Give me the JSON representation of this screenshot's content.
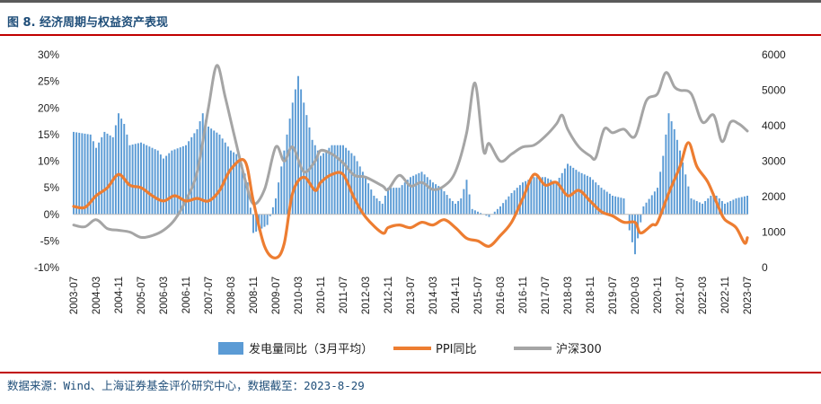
{
  "title": "图 8. 经济周期与权益资产表现",
  "source": "数据来源：Wind、上海证券基金评价研究中心，数据截至：2023-8-29",
  "colors": {
    "bar": "#5b9bd5",
    "ppi": "#ed7d31",
    "hs300": "#a5a5a5",
    "accent": "#c00000",
    "title": "#1f4e79"
  },
  "chart_data": {
    "type": "bar+line",
    "x_start": "2003-07",
    "x_end": "2023-07",
    "x_tick_labels": [
      "2003-07",
      "2004-03",
      "2004-11",
      "2005-07",
      "2006-03",
      "2006-11",
      "2007-07",
      "2008-03",
      "2008-11",
      "2009-07",
      "2010-03",
      "2010-11",
      "2011-07",
      "2012-03",
      "2012-11",
      "2013-07",
      "2014-03",
      "2014-11",
      "2015-07",
      "2016-03",
      "2016-11",
      "2017-07",
      "2018-03",
      "2018-11",
      "2019-07",
      "2020-03",
      "2020-11",
      "2021-07",
      "2022-03",
      "2022-11",
      "2023-07"
    ],
    "y_left": {
      "ticks": [
        "30%",
        "25%",
        "20%",
        "15%",
        "10%",
        "5%",
        "0%",
        "-5%",
        "-10%"
      ],
      "range": [
        -10,
        30
      ],
      "unit": "%"
    },
    "y_right": {
      "ticks": [
        "6000",
        "5000",
        "4000",
        "3000",
        "2000",
        "1000",
        "0"
      ],
      "range": [
        0,
        6000
      ]
    },
    "legend": [
      "发电量同比（3月平均）",
      "PPI同比",
      "沪深300"
    ],
    "legend_position": "bottom",
    "series": [
      {
        "name": "发电量同比（3月平均）",
        "type": "bar",
        "axis": "left",
        "points": [
          [
            "2003-07",
            15.5
          ],
          [
            "2004-01",
            15
          ],
          [
            "2004-03",
            12.5
          ],
          [
            "2004-06",
            15.5
          ],
          [
            "2004-09",
            14.5
          ],
          [
            "2004-11",
            19
          ],
          [
            "2005-01",
            17
          ],
          [
            "2005-03",
            13
          ],
          [
            "2005-07",
            13.5
          ],
          [
            "2006-01",
            12
          ],
          [
            "2006-03",
            10.5
          ],
          [
            "2006-06",
            12
          ],
          [
            "2006-11",
            13
          ],
          [
            "2007-03",
            16
          ],
          [
            "2007-05",
            19
          ],
          [
            "2007-07",
            16.5
          ],
          [
            "2007-11",
            15
          ],
          [
            "2008-03",
            12
          ],
          [
            "2008-06",
            11
          ],
          [
            "2008-09",
            6
          ],
          [
            "2008-11",
            -3.5
          ],
          [
            "2009-01",
            -3
          ],
          [
            "2009-04",
            -2
          ],
          [
            "2009-07",
            3
          ],
          [
            "2009-10",
            12
          ],
          [
            "2010-01",
            21
          ],
          [
            "2010-03",
            26
          ],
          [
            "2010-05",
            21
          ],
          [
            "2010-08",
            14
          ],
          [
            "2010-11",
            11
          ],
          [
            "2011-03",
            13
          ],
          [
            "2011-07",
            13
          ],
          [
            "2011-11",
            11
          ],
          [
            "2012-03",
            7
          ],
          [
            "2012-06",
            3.5
          ],
          [
            "2012-09",
            2
          ],
          [
            "2012-11",
            5
          ],
          [
            "2013-03",
            5
          ],
          [
            "2013-07",
            7
          ],
          [
            "2013-11",
            8
          ],
          [
            "2014-03",
            6
          ],
          [
            "2014-06",
            5
          ],
          [
            "2014-09",
            3
          ],
          [
            "2014-11",
            2
          ],
          [
            "2015-01",
            3
          ],
          [
            "2015-03",
            6.5
          ],
          [
            "2015-05",
            1
          ],
          [
            "2015-07",
            0.5
          ],
          [
            "2015-11",
            -0.5
          ],
          [
            "2016-03",
            1.5
          ],
          [
            "2016-07",
            4
          ],
          [
            "2016-11",
            6
          ],
          [
            "2017-03",
            7
          ],
          [
            "2017-07",
            7
          ],
          [
            "2017-11",
            6
          ],
          [
            "2018-03",
            9.5
          ],
          [
            "2018-07",
            8
          ],
          [
            "2018-11",
            7
          ],
          [
            "2019-03",
            5
          ],
          [
            "2019-07",
            3.5
          ],
          [
            "2019-11",
            3
          ],
          [
            "2020-01",
            -3
          ],
          [
            "2020-03",
            -7.5
          ],
          [
            "2020-06",
            1.5
          ],
          [
            "2020-11",
            5
          ],
          [
            "2021-01",
            11
          ],
          [
            "2021-03",
            19
          ],
          [
            "2021-05",
            16
          ],
          [
            "2021-07",
            12
          ],
          [
            "2021-11",
            3
          ],
          [
            "2022-03",
            2
          ],
          [
            "2022-07",
            4
          ],
          [
            "2022-11",
            2
          ],
          [
            "2023-03",
            3
          ],
          [
            "2023-07",
            3.5
          ]
        ]
      },
      {
        "name": "PPI同比",
        "type": "line",
        "axis": "left",
        "points": [
          [
            "2003-07",
            1.5
          ],
          [
            "2003-11",
            1.3
          ],
          [
            "2004-03",
            3.5
          ],
          [
            "2004-07",
            5
          ],
          [
            "2004-11",
            7.5
          ],
          [
            "2005-03",
            5.5
          ],
          [
            "2005-07",
            5
          ],
          [
            "2005-11",
            3.5
          ],
          [
            "2006-03",
            2.5
          ],
          [
            "2006-07",
            3.5
          ],
          [
            "2006-11",
            2.5
          ],
          [
            "2007-03",
            3
          ],
          [
            "2007-07",
            2.5
          ],
          [
            "2007-11",
            4.5
          ],
          [
            "2008-03",
            8.5
          ],
          [
            "2008-08",
            10
          ],
          [
            "2008-11",
            2.5
          ],
          [
            "2009-03",
            -6
          ],
          [
            "2009-07",
            -8.2
          ],
          [
            "2009-10",
            -5.5
          ],
          [
            "2010-01",
            4
          ],
          [
            "2010-05",
            7
          ],
          [
            "2010-09",
            4.5
          ],
          [
            "2010-11",
            6
          ],
          [
            "2011-03",
            7.5
          ],
          [
            "2011-07",
            7.5
          ],
          [
            "2011-11",
            3
          ],
          [
            "2012-03",
            -0.5
          ],
          [
            "2012-09",
            -3.5
          ],
          [
            "2012-11",
            -2.5
          ],
          [
            "2013-03",
            -2
          ],
          [
            "2013-07",
            -2.5
          ],
          [
            "2013-11",
            -1.5
          ],
          [
            "2014-03",
            -2
          ],
          [
            "2014-07",
            -1
          ],
          [
            "2014-11",
            -2.5
          ],
          [
            "2015-03",
            -4.5
          ],
          [
            "2015-07",
            -5
          ],
          [
            "2015-11",
            -6
          ],
          [
            "2016-03",
            -4
          ],
          [
            "2016-07",
            -1.5
          ],
          [
            "2016-11",
            3
          ],
          [
            "2017-03",
            7.5
          ],
          [
            "2017-07",
            5.5
          ],
          [
            "2017-11",
            6
          ],
          [
            "2018-03",
            3.5
          ],
          [
            "2018-07",
            4.5
          ],
          [
            "2018-11",
            2.5
          ],
          [
            "2019-03",
            0.5
          ],
          [
            "2019-07",
            -0.3
          ],
          [
            "2019-11",
            -1.5
          ],
          [
            "2020-03",
            -1.5
          ],
          [
            "2020-05",
            -3.5
          ],
          [
            "2020-09",
            -2
          ],
          [
            "2020-11",
            -1.5
          ],
          [
            "2021-03",
            4
          ],
          [
            "2021-07",
            9
          ],
          [
            "2021-10",
            13.5
          ],
          [
            "2022-01",
            9
          ],
          [
            "2022-05",
            6
          ],
          [
            "2022-09",
            1
          ],
          [
            "2022-11",
            -1
          ],
          [
            "2023-03",
            -2.5
          ],
          [
            "2023-06",
            -5.4
          ],
          [
            "2023-07",
            -4.4
          ]
        ]
      },
      {
        "name": "沪深300",
        "type": "line",
        "axis": "right",
        "points": [
          [
            "2003-07",
            1200
          ],
          [
            "2003-11",
            1150
          ],
          [
            "2004-03",
            1350
          ],
          [
            "2004-07",
            1100
          ],
          [
            "2004-11",
            1050
          ],
          [
            "2005-03",
            1000
          ],
          [
            "2005-07",
            850
          ],
          [
            "2005-11",
            900
          ],
          [
            "2006-03",
            1050
          ],
          [
            "2006-07",
            1350
          ],
          [
            "2006-11",
            1900
          ],
          [
            "2007-03",
            2700
          ],
          [
            "2007-07",
            4500
          ],
          [
            "2007-10",
            5700
          ],
          [
            "2008-01",
            4800
          ],
          [
            "2008-04",
            3800
          ],
          [
            "2008-08",
            2500
          ],
          [
            "2008-11",
            1800
          ],
          [
            "2009-03",
            2200
          ],
          [
            "2009-07",
            3400
          ],
          [
            "2009-10",
            3000
          ],
          [
            "2010-01",
            3400
          ],
          [
            "2010-05",
            2700
          ],
          [
            "2010-09",
            3000
          ],
          [
            "2010-11",
            3300
          ],
          [
            "2011-03",
            3200
          ],
          [
            "2011-07",
            2950
          ],
          [
            "2011-11",
            2600
          ],
          [
            "2012-03",
            2550
          ],
          [
            "2012-09",
            2300
          ],
          [
            "2012-11",
            2200
          ],
          [
            "2013-03",
            2600
          ],
          [
            "2013-07",
            2300
          ],
          [
            "2013-11",
            2400
          ],
          [
            "2014-03",
            2200
          ],
          [
            "2014-07",
            2300
          ],
          [
            "2014-11",
            2700
          ],
          [
            "2015-03",
            3800
          ],
          [
            "2015-06",
            5200
          ],
          [
            "2015-09",
            3300
          ],
          [
            "2015-11",
            3500
          ],
          [
            "2016-03",
            3000
          ],
          [
            "2016-07",
            3200
          ],
          [
            "2016-11",
            3400
          ],
          [
            "2017-03",
            3450
          ],
          [
            "2017-07",
            3700
          ],
          [
            "2017-11",
            4050
          ],
          [
            "2018-01",
            4300
          ],
          [
            "2018-03",
            3900
          ],
          [
            "2018-07",
            3400
          ],
          [
            "2018-11",
            3150
          ],
          [
            "2019-01",
            3100
          ],
          [
            "2019-04",
            3900
          ],
          [
            "2019-07",
            3800
          ],
          [
            "2019-11",
            3900
          ],
          [
            "2020-03",
            3700
          ],
          [
            "2020-07",
            4700
          ],
          [
            "2020-11",
            4900
          ],
          [
            "2021-02",
            5500
          ],
          [
            "2021-05",
            5100
          ],
          [
            "2021-07",
            5000
          ],
          [
            "2021-11",
            4900
          ],
          [
            "2022-03",
            4100
          ],
          [
            "2022-07",
            4300
          ],
          [
            "2022-10",
            3550
          ],
          [
            "2023-01",
            4100
          ],
          [
            "2023-04",
            4050
          ],
          [
            "2023-07",
            3850
          ]
        ]
      }
    ]
  }
}
